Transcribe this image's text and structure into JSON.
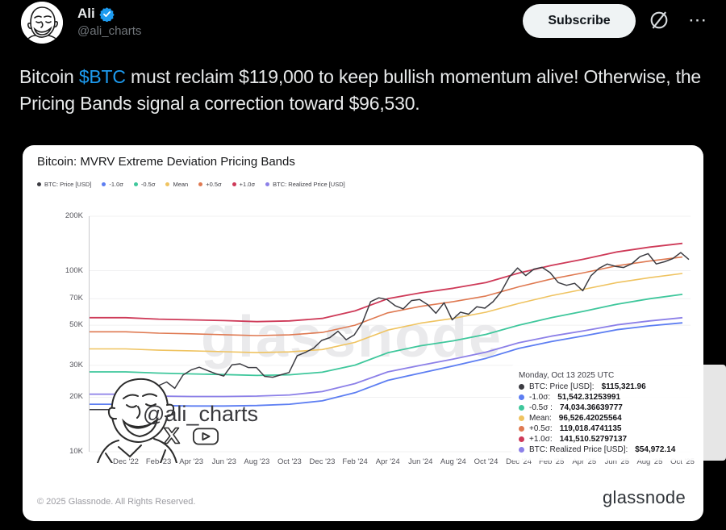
{
  "header": {
    "display_name": "Ali",
    "handle": "@ali_charts",
    "subscribe_label": "Subscribe",
    "more_label": "···",
    "badge_color": "#1d9bf0"
  },
  "tweet": {
    "text_part1": "Bitcoin ",
    "cashtag": "$BTC",
    "text_part2": " must reclaim $119,000 to keep bullish momentum alive! Otherwise, the Pricing Bands signal a correction toward $96,530.",
    "link_color": "#1d9bf0"
  },
  "card": {
    "title": "Bitcoin: MVRV Extreme Deviation Pricing Bands",
    "watermark": "glassnode",
    "signature_handle": "@ali_charts",
    "footer_left": "© 2025 Glassnode. All Rights Reserved.",
    "footer_logo": "glassnode"
  },
  "tooltip": {
    "date": "Monday, Oct 13 2025 UTC",
    "rows": [
      {
        "label": "BTC: Price [USD]:",
        "value": "$115,321.96",
        "color": "#3c3c42"
      },
      {
        "label": "-1.0σ:",
        "value": "51,542.31253991",
        "color": "#5d7ef2"
      },
      {
        "label": "-0.5σ :",
        "value": "74,034.36639777",
        "color": "#3fc79c"
      },
      {
        "label": "Mean:",
        "value": "96,526.42025564",
        "color": "#efc360"
      },
      {
        "label": "+0.5σ:",
        "value": "119,018.4741135",
        "color": "#df7951"
      },
      {
        "label": "+1.0σ:",
        "value": "141,510.52797137",
        "color": "#ce3a58"
      },
      {
        "label": "BTC: Realized Price [USD]:",
        "value": "$54,972.14",
        "color": "#8c80e8"
      }
    ]
  },
  "chart_data": {
    "type": "line",
    "title": "Bitcoin: MVRV Extreme Deviation Pricing Bands",
    "y_scale": "log",
    "units": "USD, values in thousands",
    "ylim": [
      10,
      200
    ],
    "grid": true,
    "legend_position": "top-left",
    "watermark": "glassnode",
    "y_ticks": [
      {
        "label": "200K",
        "value": 200
      },
      {
        "label": "100K",
        "value": 100
      },
      {
        "label": "70K",
        "value": 70
      },
      {
        "label": "50K",
        "value": 50
      },
      {
        "label": "30K",
        "value": 30
      },
      {
        "label": "20K",
        "value": 20
      },
      {
        "label": "10K",
        "value": 10
      }
    ],
    "x_ticks": [
      "Dec '22",
      "Feb '23",
      "Apr '23",
      "Jun '23",
      "Aug '23",
      "Oct '23",
      "Dec '23",
      "Feb '24",
      "Apr '24",
      "Jun '24",
      "Aug '24",
      "Oct '24",
      "Dec '24",
      "Feb '25",
      "Apr '25",
      "Jun '25",
      "Aug '25",
      "Oct '25"
    ],
    "legend": [
      {
        "label": "BTC: Price [USD]",
        "color": "#3c3c42"
      },
      {
        "label": "-1.0σ",
        "color": "#5d7ef2"
      },
      {
        "label": "-0.5σ",
        "color": "#3fc79c"
      },
      {
        "label": "Mean",
        "color": "#efc360"
      },
      {
        "label": "+0.5σ",
        "color": "#df7951"
      },
      {
        "label": "+1.0σ",
        "color": "#ce3a58"
      },
      {
        "label": "BTC: Realized Price [USD]",
        "color": "#8c80e8"
      }
    ],
    "series": [
      {
        "name": "+1.0σ",
        "color": "#ce3a58",
        "width": 1.8,
        "values": [
          55,
          54,
          53.5,
          53,
          52.3,
          52.8,
          54.5,
          60,
          70,
          75.5,
          80,
          86,
          97,
          107,
          116,
          127,
          135,
          141.5
        ]
      },
      {
        "name": "+0.5σ",
        "color": "#df7951",
        "width": 1.6,
        "values": [
          46,
          45.2,
          44.8,
          44.3,
          43.8,
          44.2,
          45.6,
          50,
          58.5,
          63.5,
          67.5,
          72.5,
          81.5,
          90,
          97.5,
          106.5,
          113,
          119
        ]
      },
      {
        "name": "Mean",
        "color": "#efc360",
        "width": 1.6,
        "values": [
          37,
          36.4,
          36.1,
          35.7,
          35.3,
          35.6,
          36.7,
          40.2,
          47,
          51.3,
          54.5,
          59,
          66,
          72.8,
          79,
          86,
          91.5,
          96.5
        ]
      },
      {
        "name": "-0.5σ",
        "color": "#3fc79c",
        "width": 1.8,
        "values": [
          27.6,
          27.2,
          26.9,
          26.7,
          26.4,
          26.6,
          27.5,
          30.1,
          35.2,
          38.5,
          41,
          44.5,
          50,
          55,
          59.8,
          65.3,
          70,
          74
        ]
      },
      {
        "name": "BTC: Realized Price [USD]",
        "color": "#8c80e8",
        "width": 1.8,
        "values": [
          20.8,
          20.3,
          20.2,
          20.2,
          20.3,
          20.6,
          21.5,
          23.8,
          27.6,
          30,
          32.5,
          35.5,
          40,
          43.5,
          46.6,
          50.2,
          52.8,
          55
        ]
      },
      {
        "name": "-1.0σ",
        "color": "#5d7ef2",
        "width": 1.8,
        "values": [
          18.3,
          18,
          17.9,
          17.9,
          18,
          18.3,
          19.1,
          21.2,
          24.8,
          27.2,
          29.8,
          32.8,
          37.2,
          40.6,
          43.7,
          47.2,
          49.6,
          51.5
        ]
      },
      {
        "name": "BTC: Price [USD]",
        "color": "#3c3c42",
        "width": 1.5,
        "values": [
          17.1,
          16.8,
          17,
          20.9,
          23.2,
          24.3,
          22.4,
          26.5,
          28.3,
          29.3,
          28.1,
          27,
          26.2,
          30.2,
          30.6,
          29.2,
          29.2,
          26.1,
          25.8,
          26.6,
          27.4,
          33.9,
          35.4,
          37.3,
          41.2,
          42.7,
          46.3,
          41.6,
          44.2,
          51.8,
          67.5,
          70.8,
          69.4,
          64.1,
          61.5,
          68.4,
          69.3,
          64.9,
          58.2,
          66.5,
          53.5,
          59,
          57.5,
          63.2,
          62.1,
          67.4,
          76.5,
          92.3,
          103.5,
          94,
          102,
          104.5,
          97.5,
          86,
          83,
          85.2,
          77.5,
          93.8,
          103.2,
          108.9,
          105.7,
          104.2,
          109.2,
          119.5,
          124.3,
          109,
          112,
          116.5,
          125.9,
          115.3
        ]
      }
    ]
  }
}
